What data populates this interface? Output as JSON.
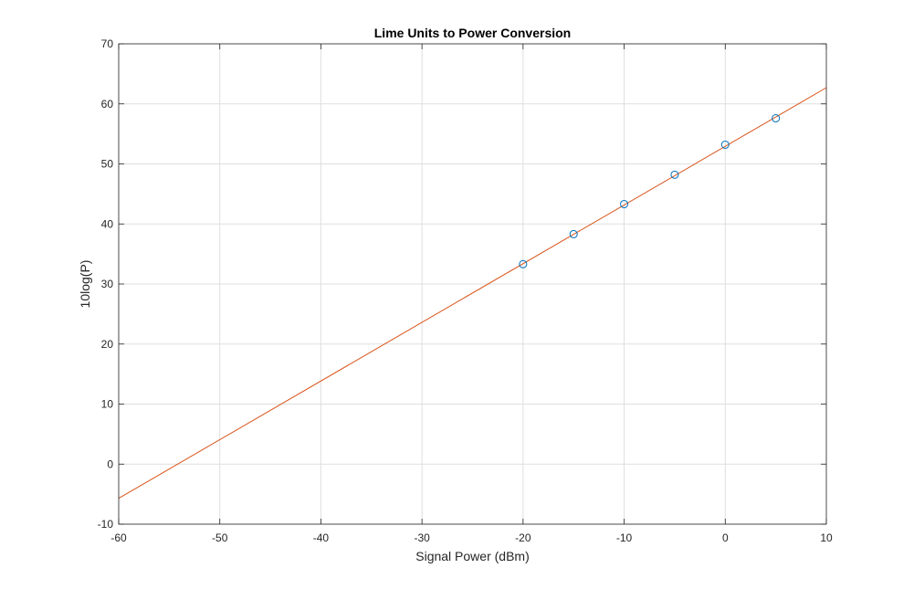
{
  "chart_data": {
    "type": "scatter",
    "title": "Lime Units to Power Conversion",
    "xlabel": "Signal Power (dBm)",
    "ylabel": "10log(P)",
    "xlim": [
      -60,
      10
    ],
    "ylim": [
      -10,
      70
    ],
    "xticks": [
      -60,
      -50,
      -40,
      -30,
      -20,
      -10,
      0,
      10
    ],
    "yticks": [
      -10,
      0,
      10,
      20,
      30,
      40,
      50,
      60,
      70
    ],
    "grid": true,
    "series": [
      {
        "kind": "markers",
        "marker": "circle",
        "color": "#0072BD",
        "x": [
          -20,
          -15,
          -10,
          -5,
          0,
          5
        ],
        "y": [
          33.3,
          38.3,
          43.3,
          48.2,
          53.2,
          57.6
        ]
      },
      {
        "kind": "line",
        "color": "#D95319",
        "x": [
          -60,
          10
        ],
        "y": [
          -5.7,
          62.7
        ]
      }
    ]
  }
}
